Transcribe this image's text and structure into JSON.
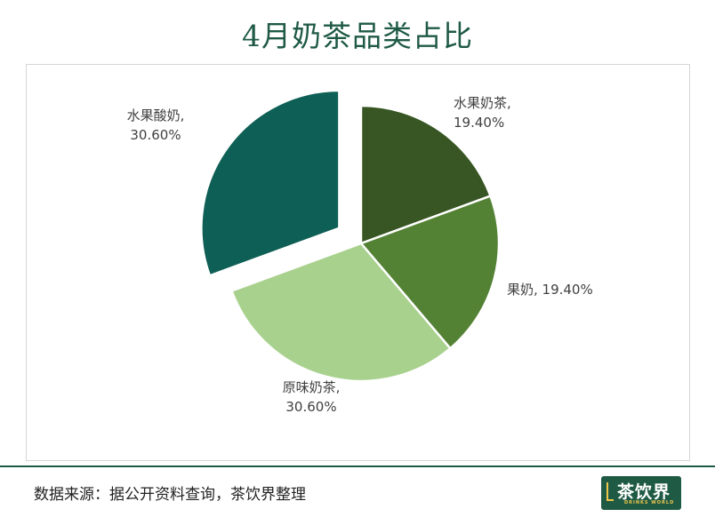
{
  "chart_data": {
    "type": "pie",
    "title": "4月奶茶品类占比",
    "slices": [
      {
        "label": "水果奶茶",
        "value": 19.4,
        "display": "19.40%",
        "color": "#375623"
      },
      {
        "label": "果奶",
        "value": 19.4,
        "display": "19.40%",
        "color": "#548235"
      },
      {
        "label": "原味奶茶",
        "value": 30.6,
        "display": "30.60%",
        "color": "#a9d18e"
      },
      {
        "label": "水果酸奶",
        "value": 30.6,
        "display": "30.60%",
        "color": "#0e5f55",
        "exploded": true
      }
    ]
  },
  "source_text": "数据来源：据公开资料查询，茶饮界整理",
  "logo": {
    "text": "茶饮界",
    "subtitle": "DRINKS WORLD"
  },
  "colors": {
    "title": "#1f5a45",
    "accent": "#1f5a45"
  }
}
